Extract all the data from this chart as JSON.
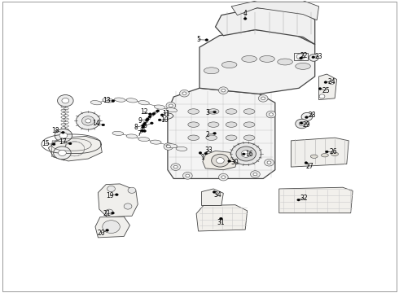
{
  "bg": "#ffffff",
  "lc": "#000000",
  "fs": 5.5,
  "fig_w": 4.9,
  "fig_h": 3.6,
  "dpi": 100,
  "parts": [
    {
      "id": "1",
      "dot": [
        0.502,
        0.478
      ],
      "label": [
        0.508,
        0.463
      ]
    },
    {
      "id": "2",
      "dot": [
        0.538,
        0.545
      ],
      "label": [
        0.521,
        0.541
      ]
    },
    {
      "id": "3",
      "dot": [
        0.538,
        0.618
      ],
      "label": [
        0.521,
        0.617
      ]
    },
    {
      "id": "4",
      "dot": [
        0.615,
        0.938
      ],
      "label": [
        0.615,
        0.955
      ]
    },
    {
      "id": "5",
      "dot": [
        0.518,
        0.865
      ],
      "label": [
        0.497,
        0.866
      ]
    },
    {
      "id": "6",
      "dot": [
        0.38,
        0.58
      ],
      "label": [
        0.363,
        0.571
      ]
    },
    {
      "id": "7",
      "dot": [
        0.362,
        0.553
      ],
      "label": [
        0.348,
        0.543
      ]
    },
    {
      "id": "8",
      "dot": [
        0.358,
        0.572
      ],
      "label": [
        0.34,
        0.566
      ]
    },
    {
      "id": "9",
      "dot": [
        0.37,
        0.594
      ],
      "label": [
        0.35,
        0.589
      ]
    },
    {
      "id": "10",
      "dot": [
        0.4,
        0.591
      ],
      "label": [
        0.412,
        0.59
      ]
    },
    {
      "id": "11",
      "dot": [
        0.406,
        0.608
      ],
      "label": [
        0.415,
        0.614
      ]
    },
    {
      "id": "12",
      "dot": [
        0.376,
        0.611
      ],
      "label": [
        0.36,
        0.619
      ]
    },
    {
      "id": "13",
      "dot": [
        0.283,
        0.656
      ],
      "label": [
        0.266,
        0.657
      ]
    },
    {
      "id": "14",
      "dot": [
        0.258,
        0.574
      ],
      "label": [
        0.241,
        0.579
      ]
    },
    {
      "id": "15",
      "dot": [
        0.134,
        0.508
      ],
      "label": [
        0.113,
        0.509
      ]
    },
    {
      "id": "16",
      "dot": [
        0.611,
        0.474
      ],
      "label": [
        0.625,
        0.474
      ]
    },
    {
      "id": "17",
      "dot": [
        0.175,
        0.51
      ],
      "label": [
        0.157,
        0.516
      ]
    },
    {
      "id": "18",
      "dot": [
        0.157,
        0.548
      ],
      "label": [
        0.138,
        0.554
      ]
    },
    {
      "id": "19",
      "dot": [
        0.292,
        0.335
      ],
      "label": [
        0.275,
        0.332
      ]
    },
    {
      "id": "20",
      "dot": [
        0.268,
        0.213
      ],
      "label": [
        0.253,
        0.203
      ]
    },
    {
      "id": "21",
      "dot": [
        0.282,
        0.272
      ],
      "label": [
        0.267,
        0.27
      ]
    },
    {
      "id": "22",
      "dot": [
        0.755,
        0.803
      ],
      "label": [
        0.762,
        0.812
      ]
    },
    {
      "id": "23",
      "dot": [
        0.786,
        0.806
      ],
      "label": [
        0.8,
        0.808
      ]
    },
    {
      "id": "24",
      "dot": [
        0.817,
        0.72
      ],
      "label": [
        0.832,
        0.722
      ]
    },
    {
      "id": "25",
      "dot": [
        0.803,
        0.698
      ],
      "label": [
        0.818,
        0.692
      ]
    },
    {
      "id": "26",
      "dot": [
        0.82,
        0.482
      ],
      "label": [
        0.836,
        0.481
      ]
    },
    {
      "id": "27",
      "dot": [
        0.768,
        0.444
      ],
      "label": [
        0.776,
        0.433
      ]
    },
    {
      "id": "28",
      "dot": [
        0.769,
        0.6
      ],
      "label": [
        0.782,
        0.606
      ]
    },
    {
      "id": "29",
      "dot": [
        0.756,
        0.58
      ],
      "label": [
        0.768,
        0.575
      ]
    },
    {
      "id": "30",
      "dot": [
        0.575,
        0.45
      ],
      "label": [
        0.589,
        0.446
      ]
    },
    {
      "id": "31",
      "dot": [
        0.554,
        0.253
      ],
      "label": [
        0.554,
        0.238
      ]
    },
    {
      "id": "32",
      "dot": [
        0.749,
        0.317
      ],
      "label": [
        0.763,
        0.324
      ]
    },
    {
      "id": "33",
      "dot": [
        0.516,
        0.476
      ],
      "label": [
        0.524,
        0.488
      ]
    },
    {
      "id": "34",
      "dot": [
        0.537,
        0.344
      ],
      "label": [
        0.546,
        0.333
      ]
    }
  ]
}
